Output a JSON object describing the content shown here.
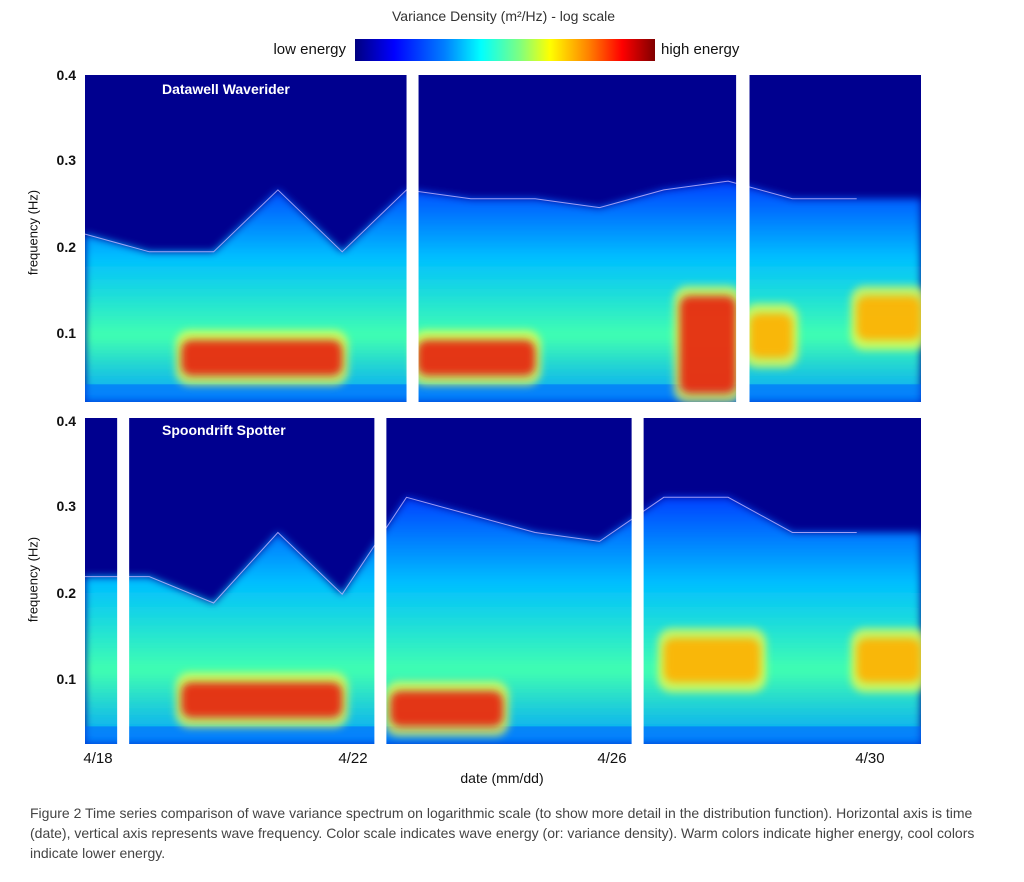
{
  "colorbar": {
    "title": "Variance Density  (m²/Hz) - log scale",
    "low_label": "low energy",
    "high_label": "high energy"
  },
  "caption": "Figure 2 Time series comparison of wave variance spectrum on logarithmic scale (to show more detail in the distribution function). Horizontal axis is time (date), vertical axis represents wave frequency. Color scale indicates wave energy (or: variance density). Warm colors indicate higher energy, cool colors indicate lower energy.",
  "chart_data": [
    {
      "type": "heatmap",
      "title": "Datawell Waverider",
      "ylabel": "frequency (Hz)",
      "xlabel": "",
      "yticks": [
        "0.4",
        "0.3",
        "0.2",
        "0.1"
      ],
      "ylim": [
        0.03,
        0.4
      ],
      "xlim_days": [
        "4/18",
        "4/31"
      ],
      "gaps": [
        [
          "4/23 00:00",
          "4/23 04:00"
        ],
        [
          "4/28 03:00",
          "4/28 08:00"
        ]
      ],
      "energy_cutoff_frequency_hz": [
        {
          "date": "4/18",
          "f": 0.22
        },
        {
          "date": "4/19",
          "f": 0.2
        },
        {
          "date": "4/20",
          "f": 0.2
        },
        {
          "date": "4/21",
          "f": 0.27
        },
        {
          "date": "4/22",
          "f": 0.2
        },
        {
          "date": "4/23",
          "f": 0.27
        },
        {
          "date": "4/24",
          "f": 0.26
        },
        {
          "date": "4/25",
          "f": 0.26
        },
        {
          "date": "4/26",
          "f": 0.25
        },
        {
          "date": "4/27",
          "f": 0.27
        },
        {
          "date": "4/28",
          "f": 0.28
        },
        {
          "date": "4/29",
          "f": 0.26
        },
        {
          "date": "4/30",
          "f": 0.26
        }
      ],
      "peak_energy_regions": [
        {
          "dates": [
            "4/19 12:00",
            "4/22 00:00"
          ],
          "frequency_hz": [
            0.06,
            0.1
          ],
          "level": "high"
        },
        {
          "dates": [
            "4/23 04:00",
            "4/25 00:00"
          ],
          "frequency_hz": [
            0.06,
            0.1
          ],
          "level": "high"
        },
        {
          "dates": [
            "4/27 06:00",
            "4/28 03:00"
          ],
          "frequency_hz": [
            0.04,
            0.15
          ],
          "level": "high"
        },
        {
          "dates": [
            "4/28 08:00",
            "4/29 00:00"
          ],
          "frequency_hz": [
            0.08,
            0.13
          ],
          "level": "moderate"
        },
        {
          "dates": [
            "4/30 00:00",
            "4/31 00:00"
          ],
          "frequency_hz": [
            0.1,
            0.15
          ],
          "level": "moderate"
        }
      ]
    },
    {
      "type": "heatmap",
      "title": "Spoondrift Spotter",
      "ylabel": "frequency (Hz)",
      "xlabel": "date (mm/dd)",
      "yticks": [
        "0.4",
        "0.3",
        "0.2",
        "0.1"
      ],
      "xticks": [
        "4/18",
        "4/22",
        "4/26",
        "4/30"
      ],
      "ylim": [
        0.03,
        0.4
      ],
      "xlim_days": [
        "4/18",
        "4/31"
      ],
      "gaps": [
        [
          "4/18 12:00",
          "4/18 16:00"
        ],
        [
          "4/22 12:00",
          "4/22 16:00"
        ],
        [
          "4/26 12:00",
          "4/26 16:00"
        ]
      ],
      "energy_cutoff_frequency_hz": [
        {
          "date": "4/18",
          "f": 0.22
        },
        {
          "date": "4/19",
          "f": 0.22
        },
        {
          "date": "4/20",
          "f": 0.19
        },
        {
          "date": "4/21",
          "f": 0.27
        },
        {
          "date": "4/22",
          "f": 0.2
        },
        {
          "date": "4/23",
          "f": 0.31
        },
        {
          "date": "4/24",
          "f": 0.29
        },
        {
          "date": "4/25",
          "f": 0.27
        },
        {
          "date": "4/26",
          "f": 0.26
        },
        {
          "date": "4/27",
          "f": 0.31
        },
        {
          "date": "4/28",
          "f": 0.31
        },
        {
          "date": "4/29",
          "f": 0.27
        },
        {
          "date": "4/30",
          "f": 0.27
        }
      ],
      "peak_energy_regions": [
        {
          "dates": [
            "4/19 12:00",
            "4/22 00:00"
          ],
          "frequency_hz": [
            0.06,
            0.1
          ],
          "level": "high"
        },
        {
          "dates": [
            "4/22 18:00",
            "4/24 12:00"
          ],
          "frequency_hz": [
            0.05,
            0.09
          ],
          "level": "high"
        },
        {
          "dates": [
            "4/27 00:00",
            "4/28 12:00"
          ],
          "frequency_hz": [
            0.1,
            0.15
          ],
          "level": "moderate"
        },
        {
          "dates": [
            "4/30 00:00",
            "4/31 00:00"
          ],
          "frequency_hz": [
            0.1,
            0.15
          ],
          "level": "moderate"
        }
      ]
    }
  ]
}
